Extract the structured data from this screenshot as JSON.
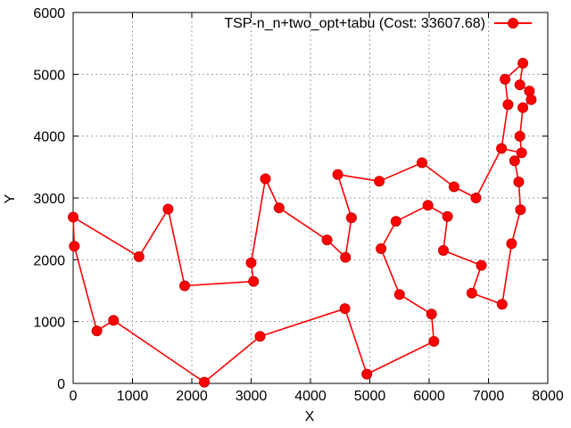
{
  "chart_data": {
    "type": "line",
    "title": "",
    "xlabel": "X",
    "ylabel": "Y",
    "xlim": [
      0,
      8000
    ],
    "ylim": [
      0,
      6000
    ],
    "xticks": [
      0,
      1000,
      2000,
      3000,
      4000,
      5000,
      6000,
      7000,
      8000
    ],
    "yticks": [
      0,
      1000,
      2000,
      3000,
      4000,
      5000,
      6000
    ],
    "xtick_labels": [
      "0",
      "1000",
      "2000",
      "3000",
      "4000",
      "5000",
      "6000",
      "7000",
      "8000"
    ],
    "ytick_labels": [
      "0",
      "1000",
      "2000",
      "3000",
      "4000",
      "5000",
      "6000"
    ],
    "grid": true,
    "legend_position": "top-right",
    "colors": {
      "series": "#ff0000",
      "marker_edge": "#cc0000",
      "grid": "#a0a0a0"
    },
    "series": [
      {
        "name": "TSP-n_n+two_opt+tabu (Cost: 33607.68)",
        "marker": "circle",
        "points": [
          [
            0,
            2690
          ],
          [
            1110,
            2050
          ],
          [
            1600,
            2820
          ],
          [
            1880,
            1580
          ],
          [
            3040,
            1650
          ],
          [
            3000,
            1950
          ],
          [
            3240,
            3310
          ],
          [
            3470,
            2840
          ],
          [
            4280,
            2320
          ],
          [
            4590,
            2040
          ],
          [
            4690,
            2680
          ],
          [
            4460,
            3380
          ],
          [
            5160,
            3270
          ],
          [
            5880,
            3570
          ],
          [
            6420,
            3180
          ],
          [
            6790,
            3000
          ],
          [
            7220,
            3800
          ],
          [
            7560,
            3730
          ],
          [
            7440,
            3600
          ],
          [
            7510,
            3260
          ],
          [
            7540,
            2810
          ],
          [
            7390,
            2260
          ],
          [
            7230,
            1280
          ],
          [
            6720,
            1460
          ],
          [
            6880,
            1910
          ],
          [
            6240,
            2150
          ],
          [
            6310,
            2700
          ],
          [
            5980,
            2880
          ],
          [
            5440,
            2620
          ],
          [
            5190,
            2180
          ],
          [
            5500,
            1440
          ],
          [
            6040,
            1120
          ],
          [
            6080,
            680
          ],
          [
            4950,
            150
          ],
          [
            4580,
            1210
          ],
          [
            3150,
            760
          ],
          [
            2210,
            20
          ],
          [
            680,
            1020
          ],
          [
            400,
            850
          ],
          [
            20,
            2220
          ],
          [
            0,
            2690
          ]
        ],
        "points_tail": [
          [
            7220,
            3800
          ],
          [
            7330,
            4510
          ],
          [
            7280,
            4920
          ],
          [
            7580,
            5180
          ],
          [
            7530,
            4830
          ],
          [
            7690,
            4730
          ],
          [
            7720,
            4590
          ],
          [
            7580,
            4460
          ],
          [
            7530,
            4000
          ],
          [
            7560,
            3730
          ]
        ]
      }
    ]
  }
}
